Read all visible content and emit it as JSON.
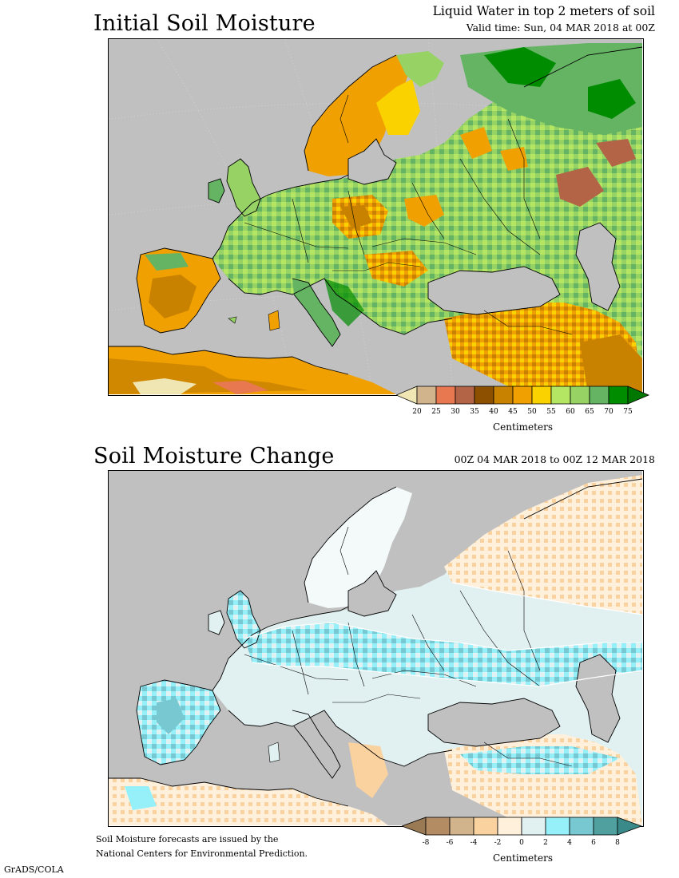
{
  "panel1": {
    "title": "Initial Soil Moisture",
    "subtitle": "Liquid Water in top 2 meters of soil",
    "valid_time": "Valid time: Sun, 04 MAR 2018 at 00Z",
    "colorbar": {
      "low_color": "#f0e6b4",
      "high_color": "#007800",
      "colors": [
        "#d2b48c",
        "#e87850",
        "#b46446",
        "#8c5000",
        "#c88200",
        "#f0a000",
        "#fad200",
        "#b4e664",
        "#96d264",
        "#64b464",
        "#008c00"
      ],
      "labels": [
        "20",
        "25",
        "30",
        "35",
        "40",
        "45",
        "50",
        "55",
        "60",
        "65",
        "70",
        "75"
      ],
      "units": "Centimeters"
    }
  },
  "panel2": {
    "title": "Soil Moisture Change",
    "period": "00Z 04 MAR 2018 to 00Z 12 MAR 2018",
    "colorbar": {
      "low_color": "#9a7a55",
      "high_color": "#3a8a8a",
      "colors": [
        "#b48c64",
        "#d2b48c",
        "#fad2a0",
        "#fff0dc",
        "#e1f0f0",
        "#96f0fa",
        "#78c8d2",
        "#50a0a0"
      ],
      "labels": [
        "-8",
        "-6",
        "-4",
        "-2",
        "0",
        "2",
        "4",
        "6",
        "8"
      ],
      "units": "Centimeters"
    }
  },
  "footer": {
    "credit_line1": "Soil Moisture forecasts are issued by the",
    "credit_line2": "National Centers for Environmental Prediction.",
    "software": "GrADS/COLA"
  }
}
